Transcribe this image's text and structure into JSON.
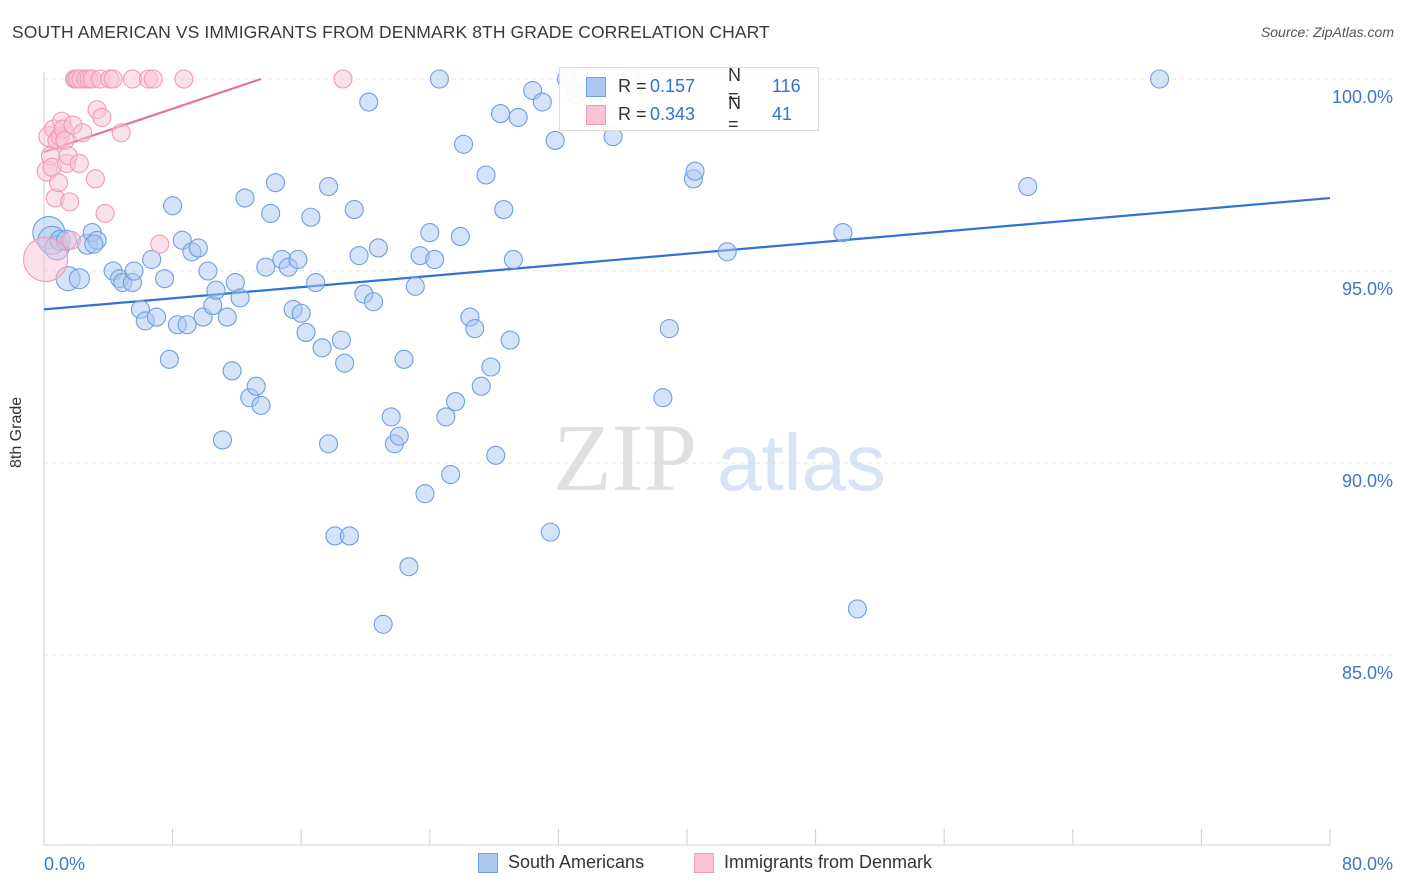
{
  "title": "SOUTH AMERICAN VS IMMIGRANTS FROM DENMARK 8TH GRADE CORRELATION CHART",
  "source": "Source: ZipAtlas.com",
  "watermark": {
    "zip": "ZIP",
    "atlas": "atlas"
  },
  "legend": {
    "r_label": "R =",
    "n_label": "N =",
    "series": [
      {
        "r": "0.157",
        "n": "116"
      },
      {
        "r": "0.343",
        "n": "41"
      }
    ]
  },
  "chart_data": {
    "type": "scatter",
    "title": "SOUTH AMERICAN VS IMMIGRANTS FROM DENMARK 8TH GRADE CORRELATION CHART",
    "ylabel": "8th Grade",
    "xlabel": "",
    "xlim": [
      0,
      80
    ],
    "ylim": [
      80.2,
      100.3
    ],
    "x_tick_labels": [
      "0.0%",
      "80.0%"
    ],
    "y_ticks": [
      {
        "value": 100,
        "label": "100.0%"
      },
      {
        "value": 95,
        "label": "95.0%"
      },
      {
        "value": 90,
        "label": "90.0%"
      },
      {
        "value": 85,
        "label": "85.0%"
      }
    ],
    "x_minor_ticks": [
      0,
      8,
      16,
      24,
      32,
      40,
      48,
      56,
      64,
      72,
      80
    ],
    "series": [
      {
        "name": "South Americans",
        "color": "#6f9fe0",
        "fill": "#aac8f0",
        "line_color": "#2f74d0",
        "r": 0.157,
        "n": 116,
        "trend": {
          "x0": 0,
          "y0": 94.0,
          "x1": 80,
          "y1": 96.9
        },
        "points": [
          [
            0.3,
            96.0,
            16
          ],
          [
            0.5,
            95.8,
            14
          ],
          [
            0.8,
            95.6,
            12
          ],
          [
            1.0,
            95.8,
            10
          ],
          [
            1.5,
            94.8,
            12
          ],
          [
            2.2,
            94.8,
            10
          ],
          [
            1.4,
            95.8,
            10
          ],
          [
            2.7,
            95.7,
            10
          ],
          [
            3.0,
            96.0,
            9
          ],
          [
            3.3,
            95.8,
            9
          ],
          [
            3.1,
            95.7,
            9
          ],
          [
            4.3,
            95.0,
            9
          ],
          [
            4.7,
            94.8,
            9
          ],
          [
            4.9,
            94.7,
            9
          ],
          [
            5.5,
            94.7,
            9
          ],
          [
            5.6,
            95.0,
            9
          ],
          [
            6.0,
            94.0,
            9
          ],
          [
            6.3,
            93.7,
            9
          ],
          [
            6.7,
            95.3,
            9
          ],
          [
            7.0,
            93.8,
            9
          ],
          [
            7.5,
            94.8,
            9
          ],
          [
            7.8,
            92.7,
            9
          ],
          [
            8.0,
            96.7,
            9
          ],
          [
            8.3,
            93.6,
            9
          ],
          [
            8.6,
            95.8,
            9
          ],
          [
            8.9,
            93.6,
            9
          ],
          [
            9.2,
            95.5,
            9
          ],
          [
            9.6,
            95.6,
            9
          ],
          [
            9.9,
            93.8,
            9
          ],
          [
            10.2,
            95.0,
            9
          ],
          [
            10.5,
            94.1,
            9
          ],
          [
            10.7,
            94.5,
            9
          ],
          [
            11.1,
            90.6,
            9
          ],
          [
            11.4,
            93.8,
            9
          ],
          [
            11.7,
            92.4,
            9
          ],
          [
            11.9,
            94.7,
            9
          ],
          [
            12.2,
            94.3,
            9
          ],
          [
            12.5,
            96.9,
            9
          ],
          [
            12.8,
            91.7,
            9
          ],
          [
            13.2,
            92.0,
            9
          ],
          [
            13.5,
            91.5,
            9
          ],
          [
            13.8,
            95.1,
            9
          ],
          [
            14.1,
            96.5,
            9
          ],
          [
            14.4,
            97.3,
            9
          ],
          [
            14.8,
            95.3,
            9
          ],
          [
            15.2,
            95.1,
            9
          ],
          [
            15.5,
            94.0,
            9
          ],
          [
            15.8,
            95.3,
            9
          ],
          [
            16.0,
            93.9,
            9
          ],
          [
            16.3,
            93.4,
            9
          ],
          [
            16.6,
            96.4,
            9
          ],
          [
            16.9,
            94.7,
            9
          ],
          [
            17.3,
            93.0,
            9
          ],
          [
            17.7,
            90.5,
            9
          ],
          [
            17.7,
            97.2,
            9
          ],
          [
            18.1,
            88.1,
            9
          ],
          [
            18.5,
            93.2,
            9
          ],
          [
            18.7,
            92.6,
            9
          ],
          [
            19.0,
            88.1,
            9
          ],
          [
            19.3,
            96.6,
            9
          ],
          [
            19.6,
            95.4,
            9
          ],
          [
            19.9,
            94.4,
            9
          ],
          [
            20.2,
            99.4,
            9
          ],
          [
            20.5,
            94.2,
            9
          ],
          [
            20.8,
            95.6,
            9
          ],
          [
            21.1,
            85.8,
            9
          ],
          [
            21.6,
            91.2,
            9
          ],
          [
            21.8,
            90.5,
            9
          ],
          [
            22.1,
            90.7,
            9
          ],
          [
            22.4,
            92.7,
            9
          ],
          [
            22.7,
            87.3,
            9
          ],
          [
            23.1,
            94.6,
            9
          ],
          [
            23.4,
            95.4,
            9
          ],
          [
            23.7,
            89.2,
            9
          ],
          [
            24.0,
            96.0,
            9
          ],
          [
            24.3,
            95.3,
            9
          ],
          [
            24.6,
            100.0,
            9
          ],
          [
            25.0,
            91.2,
            9
          ],
          [
            25.3,
            89.7,
            9
          ],
          [
            25.6,
            91.6,
            9
          ],
          [
            25.9,
            95.9,
            9
          ],
          [
            26.1,
            98.3,
            9
          ],
          [
            26.5,
            93.8,
            9
          ],
          [
            26.8,
            93.5,
            9
          ],
          [
            27.2,
            92.0,
            9
          ],
          [
            27.5,
            97.5,
            9
          ],
          [
            27.8,
            92.5,
            9
          ],
          [
            28.1,
            90.2,
            9
          ],
          [
            28.4,
            99.1,
            9
          ],
          [
            28.6,
            96.6,
            9
          ],
          [
            29.0,
            93.2,
            9
          ],
          [
            29.2,
            95.3,
            9
          ],
          [
            29.5,
            99.0,
            9
          ],
          [
            30.4,
            99.7,
            9
          ],
          [
            31.0,
            99.4,
            9
          ],
          [
            31.5,
            88.2,
            9
          ],
          [
            31.8,
            98.4,
            9
          ],
          [
            32.5,
            100.0,
            9
          ],
          [
            33.1,
            99.6,
            9
          ],
          [
            34.5,
            99.1,
            9
          ],
          [
            35.4,
            98.5,
            9
          ],
          [
            36.5,
            100.0,
            9
          ],
          [
            38.5,
            91.7,
            9
          ],
          [
            38.9,
            93.5,
            9
          ],
          [
            40.4,
            97.4,
            9
          ],
          [
            40.5,
            97.6,
            9
          ],
          [
            42.5,
            95.5,
            9
          ],
          [
            49.7,
            96.0,
            9
          ],
          [
            50.6,
            86.2,
            9
          ],
          [
            61.2,
            97.2,
            9
          ],
          [
            69.4,
            100.0,
            9
          ]
        ]
      },
      {
        "name": "Immigrants from Denmark",
        "color": "#f29ab5",
        "fill": "#f8c4d4",
        "line_color": "#e8709a",
        "r": 0.343,
        "n": 41,
        "trend": {
          "x0": 0,
          "y0": 98.1,
          "x1": 13.5,
          "y1": 100.0
        },
        "points": [
          [
            0.1,
            95.3,
            22
          ],
          [
            0.2,
            97.6,
            10
          ],
          [
            0.3,
            98.5,
            10
          ],
          [
            0.4,
            98.0,
            9
          ],
          [
            0.5,
            97.7,
            9
          ],
          [
            0.6,
            98.7,
            9
          ],
          [
            0.7,
            96.9,
            9
          ],
          [
            0.8,
            98.4,
            9
          ],
          [
            0.9,
            97.3,
            9
          ],
          [
            1.0,
            98.5,
            9
          ],
          [
            1.1,
            98.9,
            9
          ],
          [
            1.2,
            98.7,
            9
          ],
          [
            1.3,
            98.4,
            9
          ],
          [
            1.4,
            97.8,
            9
          ],
          [
            1.5,
            98.0,
            9
          ],
          [
            1.6,
            96.8,
            9
          ],
          [
            1.7,
            95.8,
            9
          ],
          [
            1.8,
            98.8,
            9
          ],
          [
            1.9,
            100.0,
            9
          ],
          [
            2.0,
            100.0,
            9
          ],
          [
            2.1,
            100.0,
            9
          ],
          [
            2.2,
            97.8,
            9
          ],
          [
            2.3,
            100.0,
            9
          ],
          [
            2.4,
            98.6,
            9
          ],
          [
            2.6,
            100.0,
            9
          ],
          [
            2.8,
            100.0,
            9
          ],
          [
            3.0,
            100.0,
            9
          ],
          [
            3.2,
            97.4,
            9
          ],
          [
            3.3,
            99.2,
            9
          ],
          [
            3.5,
            100.0,
            9
          ],
          [
            3.6,
            99.0,
            9
          ],
          [
            3.8,
            96.5,
            9
          ],
          [
            4.1,
            100.0,
            9
          ],
          [
            4.3,
            100.0,
            9
          ],
          [
            4.8,
            98.6,
            9
          ],
          [
            5.5,
            100.0,
            9
          ],
          [
            6.5,
            100.0,
            9
          ],
          [
            6.8,
            100.0,
            9
          ],
          [
            7.2,
            95.7,
            9
          ],
          [
            8.7,
            100.0,
            9
          ],
          [
            18.6,
            100.0,
            9
          ]
        ]
      }
    ]
  },
  "bottom_legend": [
    "South Americans",
    "Immigrants from Denmark"
  ]
}
